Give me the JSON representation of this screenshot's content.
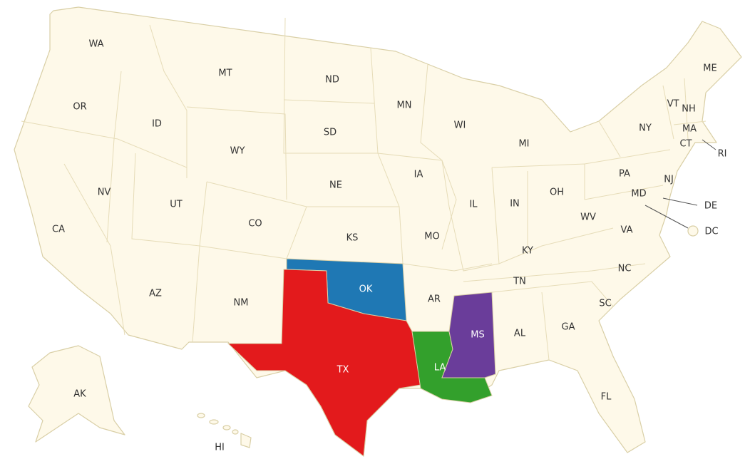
{
  "highlight_colors": {
    "TX": "#e31a1c",
    "OK": "#1f78b4",
    "LA": "#33a02c",
    "MS": "#6a3d9a"
  },
  "base_color": "#fef9e9",
  "border_color": "#d9cfa6",
  "states": [
    "WA",
    "OR",
    "CA",
    "ID",
    "NV",
    "MT",
    "WY",
    "UT",
    "AZ",
    "CO",
    "NM",
    "ND",
    "SD",
    "NE",
    "KS",
    "OK",
    "TX",
    "MN",
    "IA",
    "MO",
    "AR",
    "LA",
    "WI",
    "IL",
    "MI",
    "IN",
    "OH",
    "KY",
    "TN",
    "MS",
    "AL",
    "GA",
    "FL",
    "SC",
    "NC",
    "VA",
    "WV",
    "PA",
    "NY",
    "VT",
    "NH",
    "ME",
    "MA",
    "CT",
    "RI",
    "NJ",
    "DE",
    "MD",
    "DC",
    "AK",
    "HI"
  ]
}
